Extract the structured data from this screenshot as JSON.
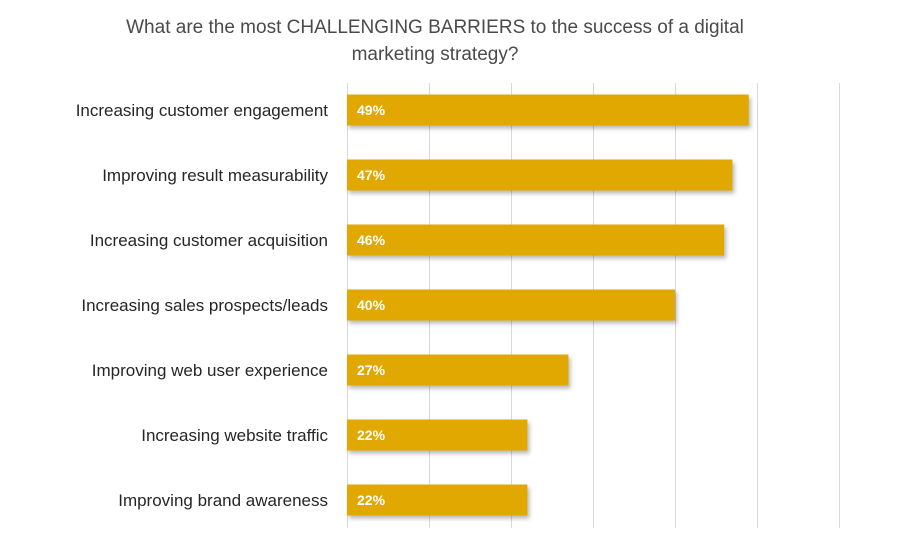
{
  "chart_data": {
    "type": "bar",
    "orientation": "horizontal",
    "title": "What are the most CHALLENGING BARRIERS to the success of a digital marketing strategy?",
    "title_lines": [
      "What are the most CHALLENGING BARRIERS to the success of a digital",
      "marketing strategy?"
    ],
    "categories": [
      "Increasing customer engagement",
      "Improving result measurability",
      "Increasing customer acquisition",
      "Increasing sales prospects/leads",
      "Improving web user experience",
      "Increasing website traffic",
      "Improving brand awareness"
    ],
    "values": [
      49,
      47,
      46,
      40,
      27,
      22,
      22
    ],
    "value_labels": [
      "49%",
      "47%",
      "46%",
      "40%",
      "27%",
      "22%",
      "22%"
    ],
    "unit": "%",
    "xlim": [
      0,
      60
    ],
    "grid_step": 10,
    "grid": true,
    "legend": false,
    "bar_color": "#E0A800",
    "value_label_color": "#FFFFFF"
  }
}
